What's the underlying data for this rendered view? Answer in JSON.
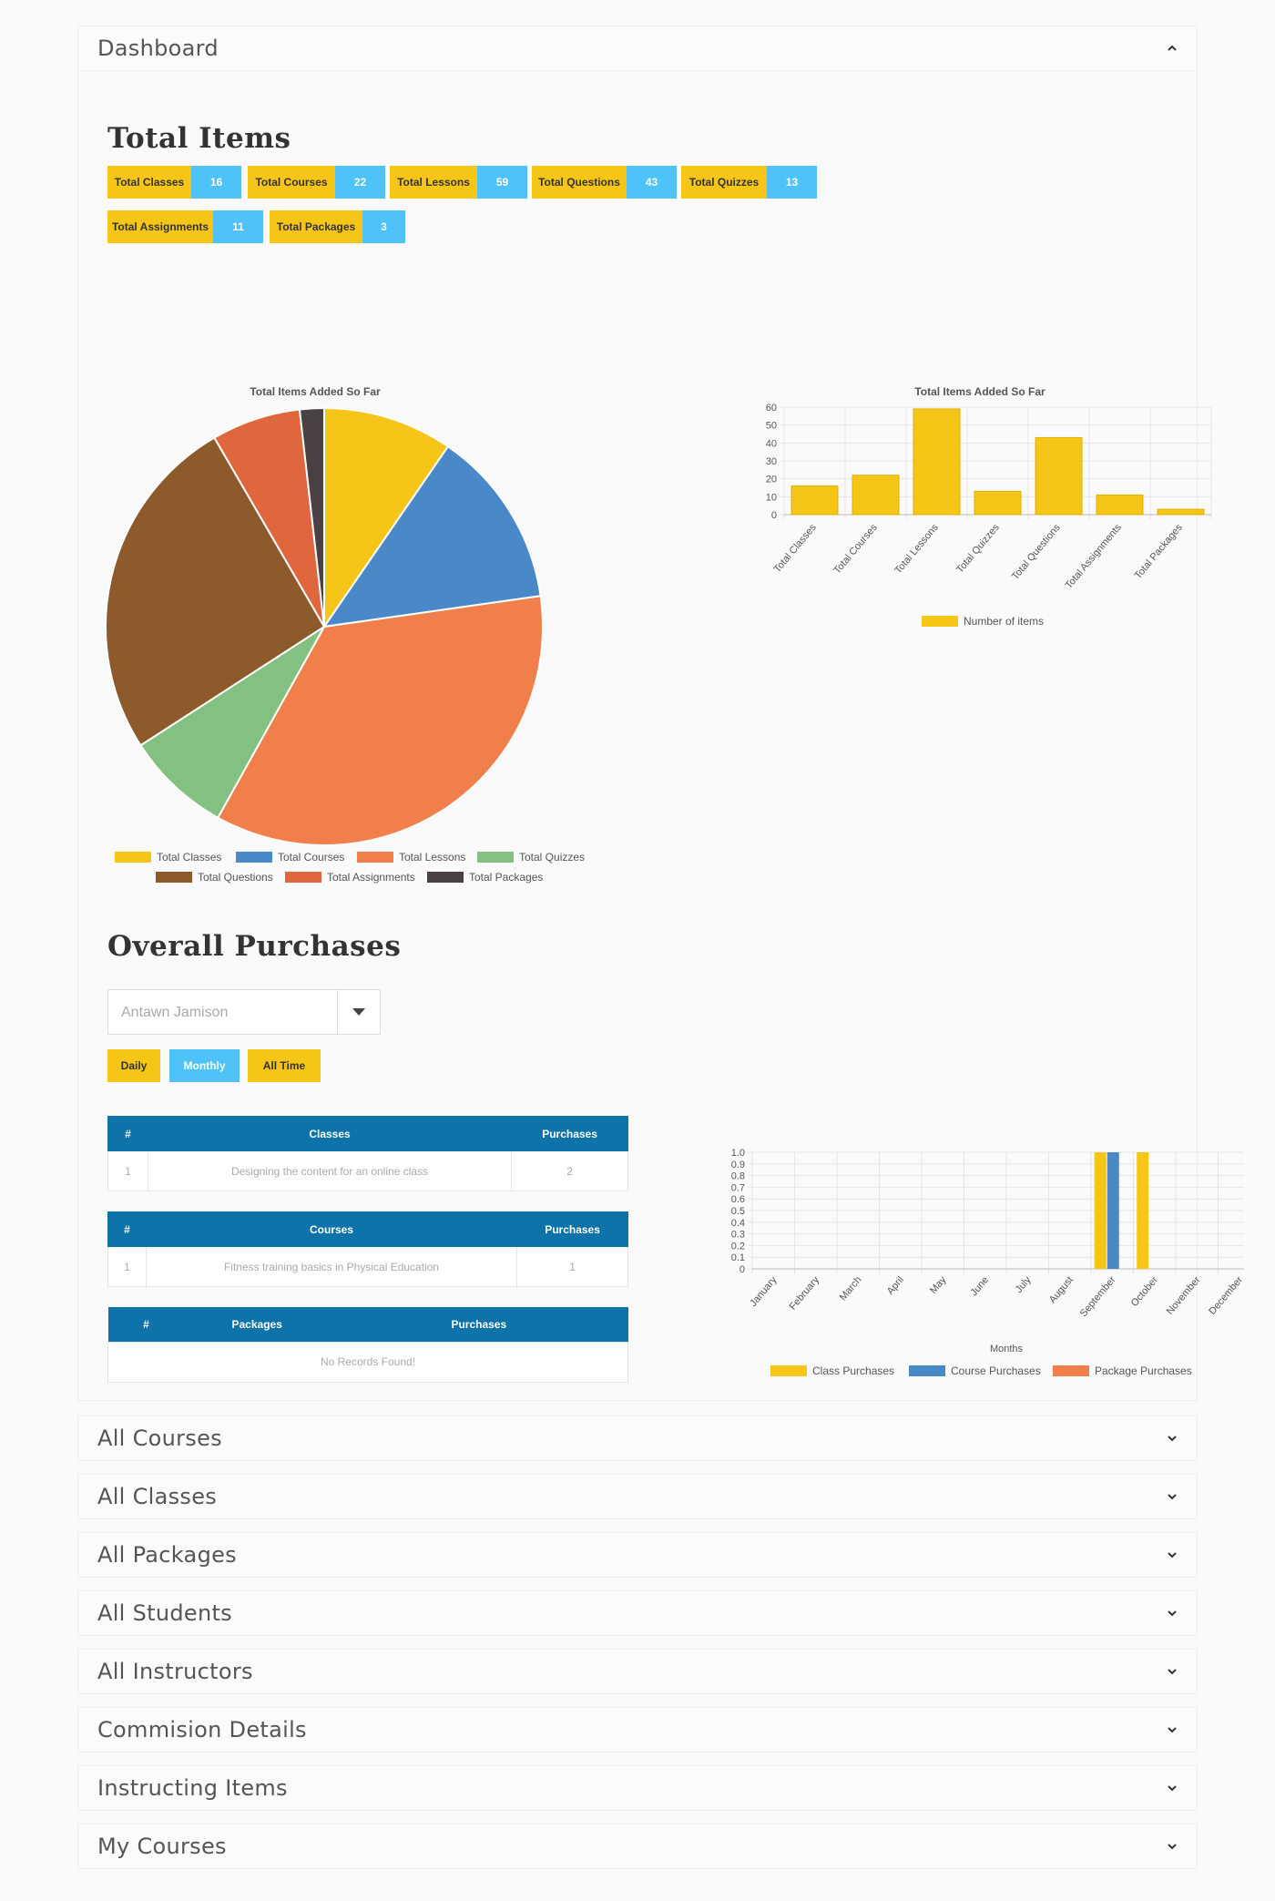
{
  "dashboard": {
    "title": "Dashboard"
  },
  "total_items": {
    "title": "Total Items",
    "tiles": [
      {
        "label": "Total Classes",
        "count": "16"
      },
      {
        "label": "Total Courses",
        "count": "22"
      },
      {
        "label": "Total Lessons",
        "count": "59"
      },
      {
        "label": "Total Questions",
        "count": "43"
      },
      {
        "label": "Total Quizzes",
        "count": "13"
      },
      {
        "label": "Total Assignments",
        "count": "11"
      },
      {
        "label": "Total Packages",
        "count": "3"
      }
    ]
  },
  "colors": {
    "yellow": "#f5c518",
    "blue": "#4a89c8",
    "orange": "#f07f4c",
    "green": "#82c181",
    "brown": "#8d5a2b",
    "dark_orange": "#e0673d",
    "dark": "#4a4145",
    "cyan": "#4fc3f7",
    "table_header": "#0e73a8"
  },
  "chart_data": [
    {
      "type": "pie",
      "title": "Total Items Added So Far",
      "categories": [
        "Total Classes",
        "Total Courses",
        "Total Lessons",
        "Total Quizzes",
        "Total Questions",
        "Total Assignments",
        "Total Packages"
      ],
      "values": [
        16,
        22,
        59,
        13,
        43,
        11,
        3
      ],
      "colors": [
        "#f5c518",
        "#4a89c8",
        "#f07f4c",
        "#82c181",
        "#8d5a2b",
        "#e0673d",
        "#4a4145"
      ],
      "legend": "bottom"
    },
    {
      "type": "bar",
      "title": "Total Items Added So Far",
      "categories": [
        "Total Classes",
        "Total Courses",
        "Total Lessons",
        "Total Quizzes",
        "Total Questions",
        "Total Assignments",
        "Total Packages"
      ],
      "series": [
        {
          "name": "Number of items",
          "values": [
            16,
            22,
            59,
            13,
            43,
            11,
            3
          ]
        }
      ],
      "ylim": [
        0,
        60
      ],
      "yticks": [
        "60",
        "50",
        "40",
        "30",
        "20",
        "10",
        "0"
      ],
      "grid": true,
      "legend": "bottom"
    },
    {
      "type": "bar",
      "title": "",
      "xlabel": "Months",
      "categories": [
        "January",
        "February",
        "March",
        "April",
        "May",
        "June",
        "July",
        "August",
        "September",
        "October",
        "November",
        "December"
      ],
      "series": [
        {
          "name": "Class Purchases",
          "values": [
            0,
            0,
            0,
            0,
            0,
            0,
            0,
            0,
            1,
            1,
            0,
            0
          ]
        },
        {
          "name": "Course Purchases",
          "values": [
            0,
            0,
            0,
            0,
            0,
            0,
            0,
            0,
            1,
            0,
            0,
            0
          ]
        },
        {
          "name": "Package Purchases",
          "values": [
            0,
            0,
            0,
            0,
            0,
            0,
            0,
            0,
            0,
            0,
            0,
            0
          ]
        }
      ],
      "ylim": [
        0,
        1.0
      ],
      "yticks": [
        "1.0",
        "0.9",
        "0.8",
        "0.7",
        "0.6",
        "0.5",
        "0.4",
        "0.3",
        "0.2",
        "0.1",
        "0"
      ],
      "grid": true,
      "legend": "bottom"
    }
  ],
  "purchases": {
    "title": "Overall Purchases",
    "select_value": "Antawn Jamison",
    "buttons": [
      "Daily",
      "Monthly",
      "All Time"
    ],
    "classes_table": {
      "headers": [
        "#",
        "Classes",
        "Purchases"
      ],
      "rows": [
        [
          "1",
          "Designing the content for an online class",
          "2"
        ]
      ]
    },
    "courses_table": {
      "headers": [
        "#",
        "Courses",
        "Purchases"
      ],
      "rows": [
        [
          "1",
          "Fitness training basics in Physical Education",
          "1"
        ]
      ]
    },
    "packages_table": {
      "headers": [
        "#",
        "Packages",
        "Purchases"
      ],
      "empty": "No Records Found!"
    }
  },
  "sections": [
    "All Courses",
    "All Classes",
    "All Packages",
    "All Students",
    "All Instructors",
    "Commision Details",
    "Instructing Items",
    "My Courses"
  ]
}
